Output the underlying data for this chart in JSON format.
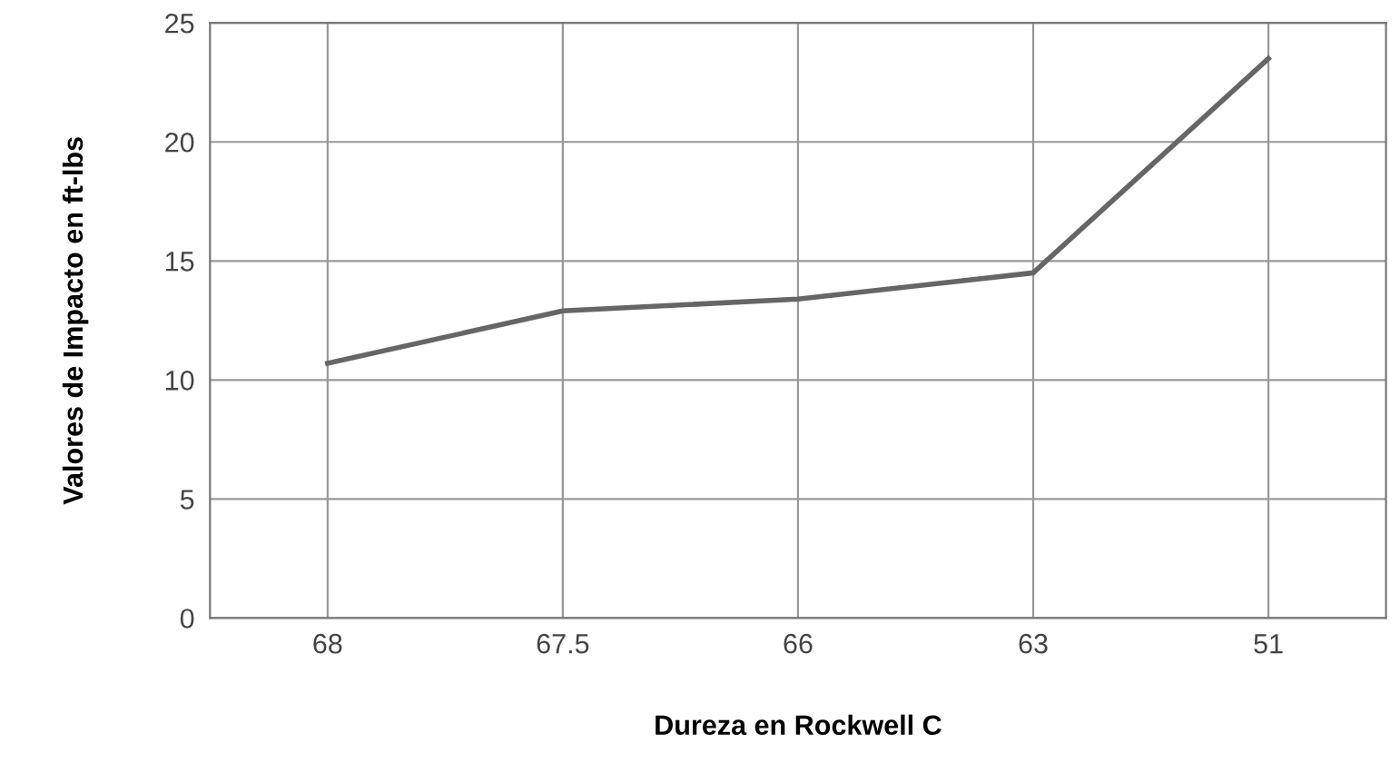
{
  "chart_data": {
    "type": "line",
    "xlabel": "Dureza en Rockwell C",
    "ylabel": "Valores de Impacto en ft-lbs",
    "categories": [
      "68",
      "67.5",
      "66",
      "63",
      "51"
    ],
    "series": [
      {
        "color": "#666666",
        "values": [
          10.7,
          12.9,
          13.4,
          14.5,
          23.5
        ]
      }
    ],
    "ylim": [
      0,
      25
    ],
    "yticks": [
      0,
      5,
      10,
      15,
      20,
      25
    ],
    "grid": true,
    "marker": "none",
    "line_style": "solid"
  }
}
